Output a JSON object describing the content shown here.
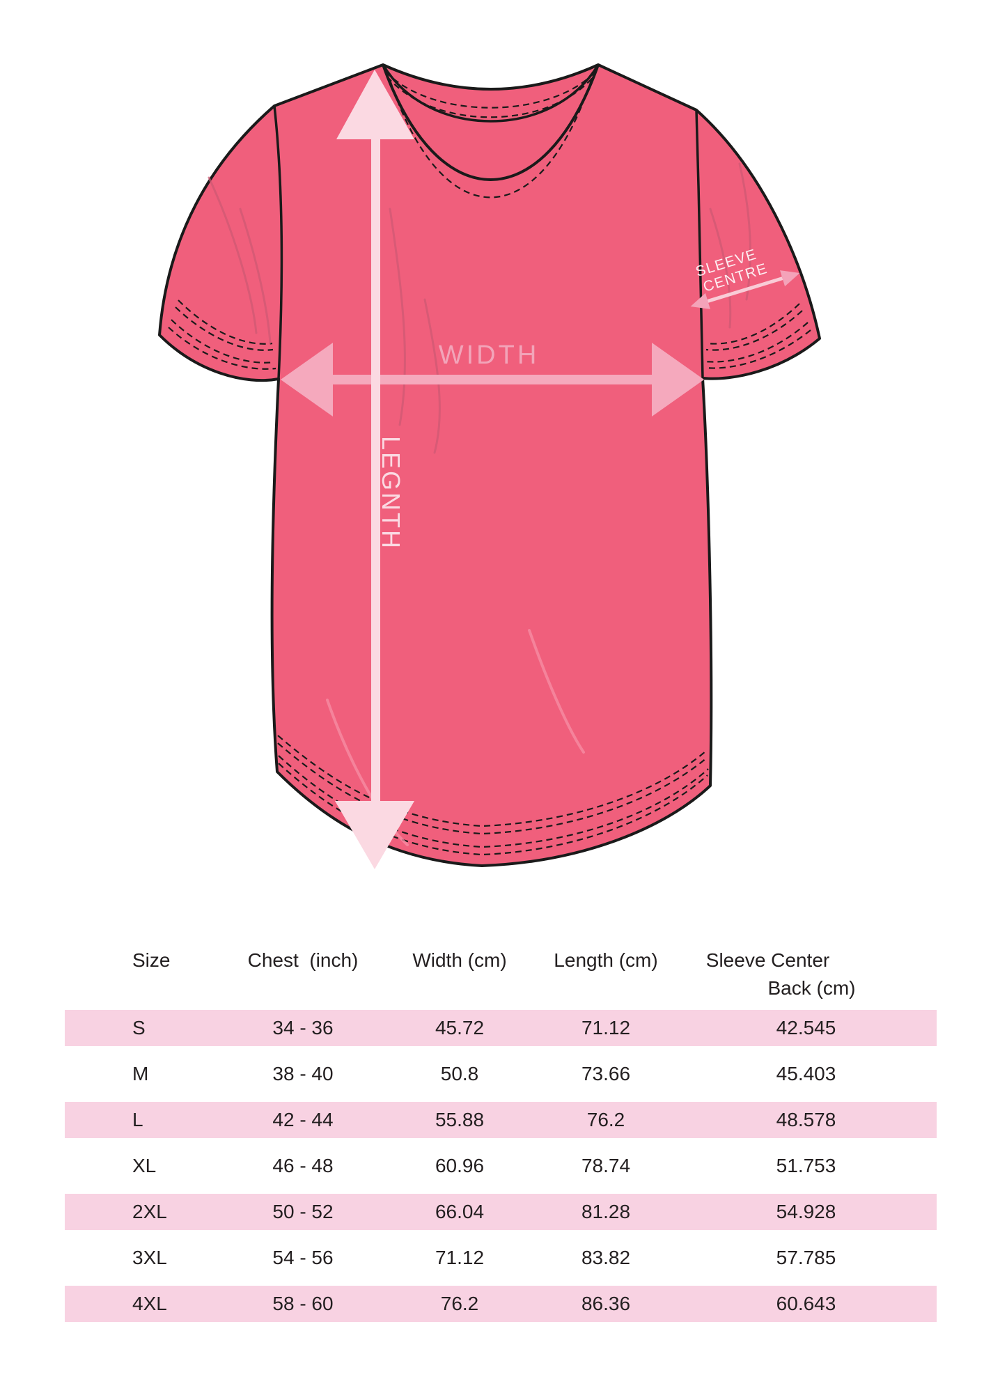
{
  "diagram": {
    "shirt_color": "#f05f7c",
    "outline_color": "#1a1a1a",
    "fold_shadow_color": "#cd5873",
    "fold_highlight_color": "#f78fa6",
    "labels": {
      "width": "WIDTH",
      "length": "LEGNTH",
      "sleeve_line1": "SLEEVE",
      "sleeve_line2": "CENTRE"
    },
    "label_colors": {
      "width": "#f2a4b9",
      "length": "#fbdae3",
      "sleeve": "#fdeef2"
    },
    "arrow_colors": {
      "length": "#fbd9e2",
      "width": "#f5a9bd",
      "sleeve_heads": "#f4a3b9",
      "sleeve_line": "#f9ccd7"
    }
  },
  "table": {
    "highlight_color": "#f8d2e2",
    "text_color": "#231f20",
    "headers": {
      "size": "Size",
      "chest": "Chest  (inch)",
      "width": "Width (cm)",
      "length": "Length (cm)",
      "sleeve_line1": "Sleeve Center",
      "sleeve_line2": "Back (cm)"
    },
    "rows": [
      [
        "S",
        "34 - 36",
        "45.72",
        "71.12",
        "42.545"
      ],
      [
        "M",
        "38 - 40",
        "50.8",
        "73.66",
        "45.403"
      ],
      [
        "L",
        "42 - 44",
        "55.88",
        "76.2",
        "48.578"
      ],
      [
        "XL",
        "46 - 48",
        "60.96",
        "78.74",
        "51.753"
      ],
      [
        "2XL",
        "50 - 52",
        "66.04",
        "81.28",
        "54.928"
      ],
      [
        "3XL",
        "54 - 56",
        "71.12",
        "83.82",
        "57.785"
      ],
      [
        "4XL",
        "58 - 60",
        "76.2",
        "86.36",
        "60.643"
      ]
    ]
  }
}
